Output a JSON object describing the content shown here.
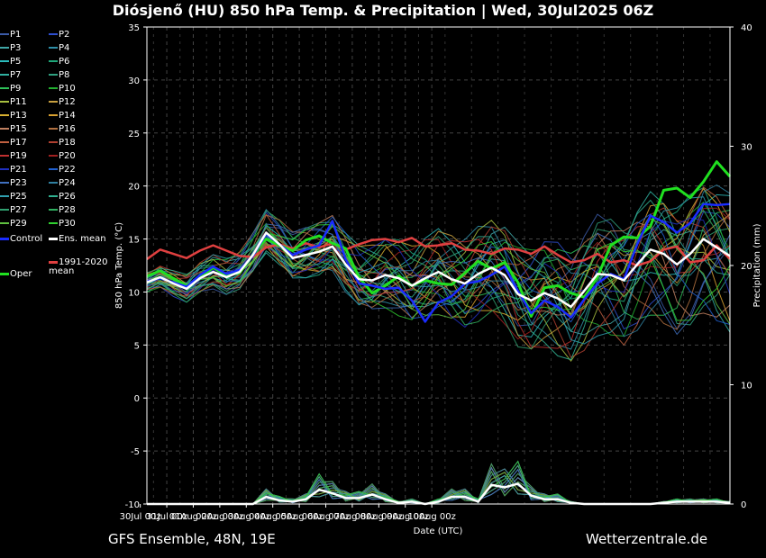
{
  "header": {
    "title": "Diósjenő  (HU)  850 hPa Temp. & Precipitation | Wed, 30Jul2025 06Z"
  },
  "footer": {
    "left": "GFS Ensemble, 48N, 19E",
    "right": "Wetterzentrale.de"
  },
  "legend": {
    "members": [
      {
        "name": "P1",
        "color": "#3b5ba8"
      },
      {
        "name": "P2",
        "color": "#2e4fd0"
      },
      {
        "name": "P3",
        "color": "#3fa6a6"
      },
      {
        "name": "P4",
        "color": "#2f8fa8"
      },
      {
        "name": "P5",
        "color": "#2bbcbc"
      },
      {
        "name": "P6",
        "color": "#1fa87a"
      },
      {
        "name": "P7",
        "color": "#30b0a0"
      },
      {
        "name": "P8",
        "color": "#2fa080"
      },
      {
        "name": "P9",
        "color": "#2ec058"
      },
      {
        "name": "P10",
        "color": "#22b030"
      },
      {
        "name": "P11",
        "color": "#a8c040"
      },
      {
        "name": "P12",
        "color": "#c8a040"
      },
      {
        "name": "P13",
        "color": "#d8b030"
      },
      {
        "name": "P14",
        "color": "#d8a030"
      },
      {
        "name": "P15",
        "color": "#c08060"
      },
      {
        "name": "P16",
        "color": "#b07040"
      },
      {
        "name": "P17",
        "color": "#c06040"
      },
      {
        "name": "P18",
        "color": "#b04030"
      },
      {
        "name": "P19",
        "color": "#c03030"
      },
      {
        "name": "P20",
        "color": "#a02020"
      },
      {
        "name": "P21",
        "color": "#2030c0"
      },
      {
        "name": "P22",
        "color": "#2060d0"
      },
      {
        "name": "P23",
        "color": "#4070c0"
      },
      {
        "name": "P24",
        "color": "#3080a0"
      },
      {
        "name": "P25",
        "color": "#30a0b0"
      },
      {
        "name": "P26",
        "color": "#30b090"
      },
      {
        "name": "P27",
        "color": "#30a070"
      },
      {
        "name": "P28",
        "color": "#30b060"
      },
      {
        "name": "P29",
        "color": "#60c040"
      },
      {
        "name": "P30",
        "color": "#30d030"
      }
    ],
    "control": {
      "name": "Control",
      "color": "#1a2cff"
    },
    "ens_mean": {
      "name": "Ens. mean",
      "color": "#ffffff"
    },
    "oper": {
      "name": "Oper",
      "color": "#20e020"
    },
    "climate": {
      "name": "1991-2020\nmean",
      "color": "#e04040"
    }
  },
  "chart_data": {
    "type": "line",
    "xlabel": "Date (UTC)",
    "ylabel": "850 hPa Temp. (°C)",
    "ylabel_right": "Precipitation (mm)",
    "ylim": [
      -10,
      35
    ],
    "ylim_right": [
      0,
      40
    ],
    "yticks": [
      -10,
      -5,
      0,
      5,
      10,
      15,
      20,
      25,
      30,
      35
    ],
    "yticks_right": [
      0,
      10,
      20,
      30,
      40
    ],
    "x_ticklabels": [
      "30Jul 00z",
      "31Jul 00z",
      "01Aug 00z",
      "02Aug 00z",
      "03Aug 00z",
      "04Aug 00z",
      "05Aug 00z",
      "06Aug 00z",
      "07Aug 00z",
      "08Aug 00z",
      "09Aug 00z",
      "10Aug 00z"
    ],
    "x_start_hours": 6,
    "x_step_hours": 12,
    "grid": true,
    "series": [
      {
        "name": "1991-2020 mean",
        "values": [
          13.1,
          14.0,
          13.6,
          13.2,
          13.9,
          14.4,
          13.9,
          13.4,
          13.3,
          14.2,
          14.5,
          14.1,
          14.6,
          14.2,
          14.6,
          14.0,
          14.5,
          14.9,
          15.0,
          14.7,
          15.1,
          14.3,
          14.4,
          14.6,
          14.0,
          13.9,
          13.6,
          14.1,
          14.0,
          13.6,
          14.3,
          13.5,
          12.8,
          13.0,
          13.6,
          12.8,
          13.0,
          12.5,
          12.9,
          14.0,
          14.3,
          12.8,
          13.0,
          14.4,
          13.1
        ]
      },
      {
        "name": "Oper",
        "values": [
          11.5,
          12.0,
          11.3,
          10.6,
          11.4,
          12.3,
          11.6,
          11.8,
          13.5,
          15.0,
          14.4,
          13.9,
          14.9,
          15.3,
          14.6,
          14.1,
          11.4,
          9.9,
          10.6,
          11.5,
          10.6,
          11.1,
          10.8,
          10.7,
          11.8,
          12.9,
          12.2,
          12.8,
          10.9,
          7.7,
          10.4,
          10.6,
          9.9,
          9.5,
          11.4,
          14.4,
          15.2,
          15.1,
          16.2,
          19.6,
          19.8,
          18.9,
          20.4,
          22.3,
          20.9
        ]
      },
      {
        "name": "Control",
        "values": [
          11.0,
          11.3,
          10.9,
          10.5,
          11.6,
          12.4,
          11.7,
          12.1,
          13.4,
          15.5,
          14.5,
          13.5,
          14.0,
          14.4,
          16.7,
          13.1,
          10.8,
          10.6,
          10.3,
          10.4,
          9.2,
          7.2,
          9.0,
          9.6,
          10.8,
          11.0,
          11.6,
          12.4,
          10.1,
          8.0,
          9.2,
          8.6,
          7.6,
          9.3,
          10.8,
          11.7,
          11.2,
          14.5,
          17.2,
          16.6,
          15.6,
          16.5,
          18.3,
          18.2,
          18.3
        ]
      },
      {
        "name": "Ens. mean",
        "values": [
          10.9,
          11.4,
          10.8,
          10.3,
          11.3,
          11.9,
          11.4,
          11.9,
          13.5,
          15.6,
          14.5,
          13.2,
          13.5,
          13.8,
          14.3,
          12.6,
          11.2,
          11.1,
          11.6,
          11.3,
          10.6,
          11.3,
          11.9,
          11.2,
          10.8,
          11.7,
          12.3,
          11.6,
          9.8,
          9.2,
          9.9,
          9.4,
          8.6,
          10.1,
          11.7,
          11.6,
          11.1,
          12.6,
          14.0,
          13.6,
          12.6,
          13.6,
          15.0,
          14.2,
          13.4
        ]
      }
    ],
    "precip_series": [
      {
        "name": "Ens. mean precip",
        "values": [
          0,
          0,
          0,
          0,
          0,
          0,
          0,
          0,
          0,
          0.6,
          0.3,
          0.2,
          0.4,
          1.2,
          0.9,
          0.5,
          0.5,
          0.8,
          0.4,
          0.1,
          0.2,
          0,
          0.2,
          0.6,
          0.6,
          0.2,
          1.6,
          1.4,
          1.7,
          0.7,
          0.4,
          0.4,
          0.1,
          0,
          0,
          0,
          0,
          0,
          0,
          0.1,
          0.2,
          0.2,
          0.2,
          0.2,
          0.1
        ]
      }
    ]
  }
}
